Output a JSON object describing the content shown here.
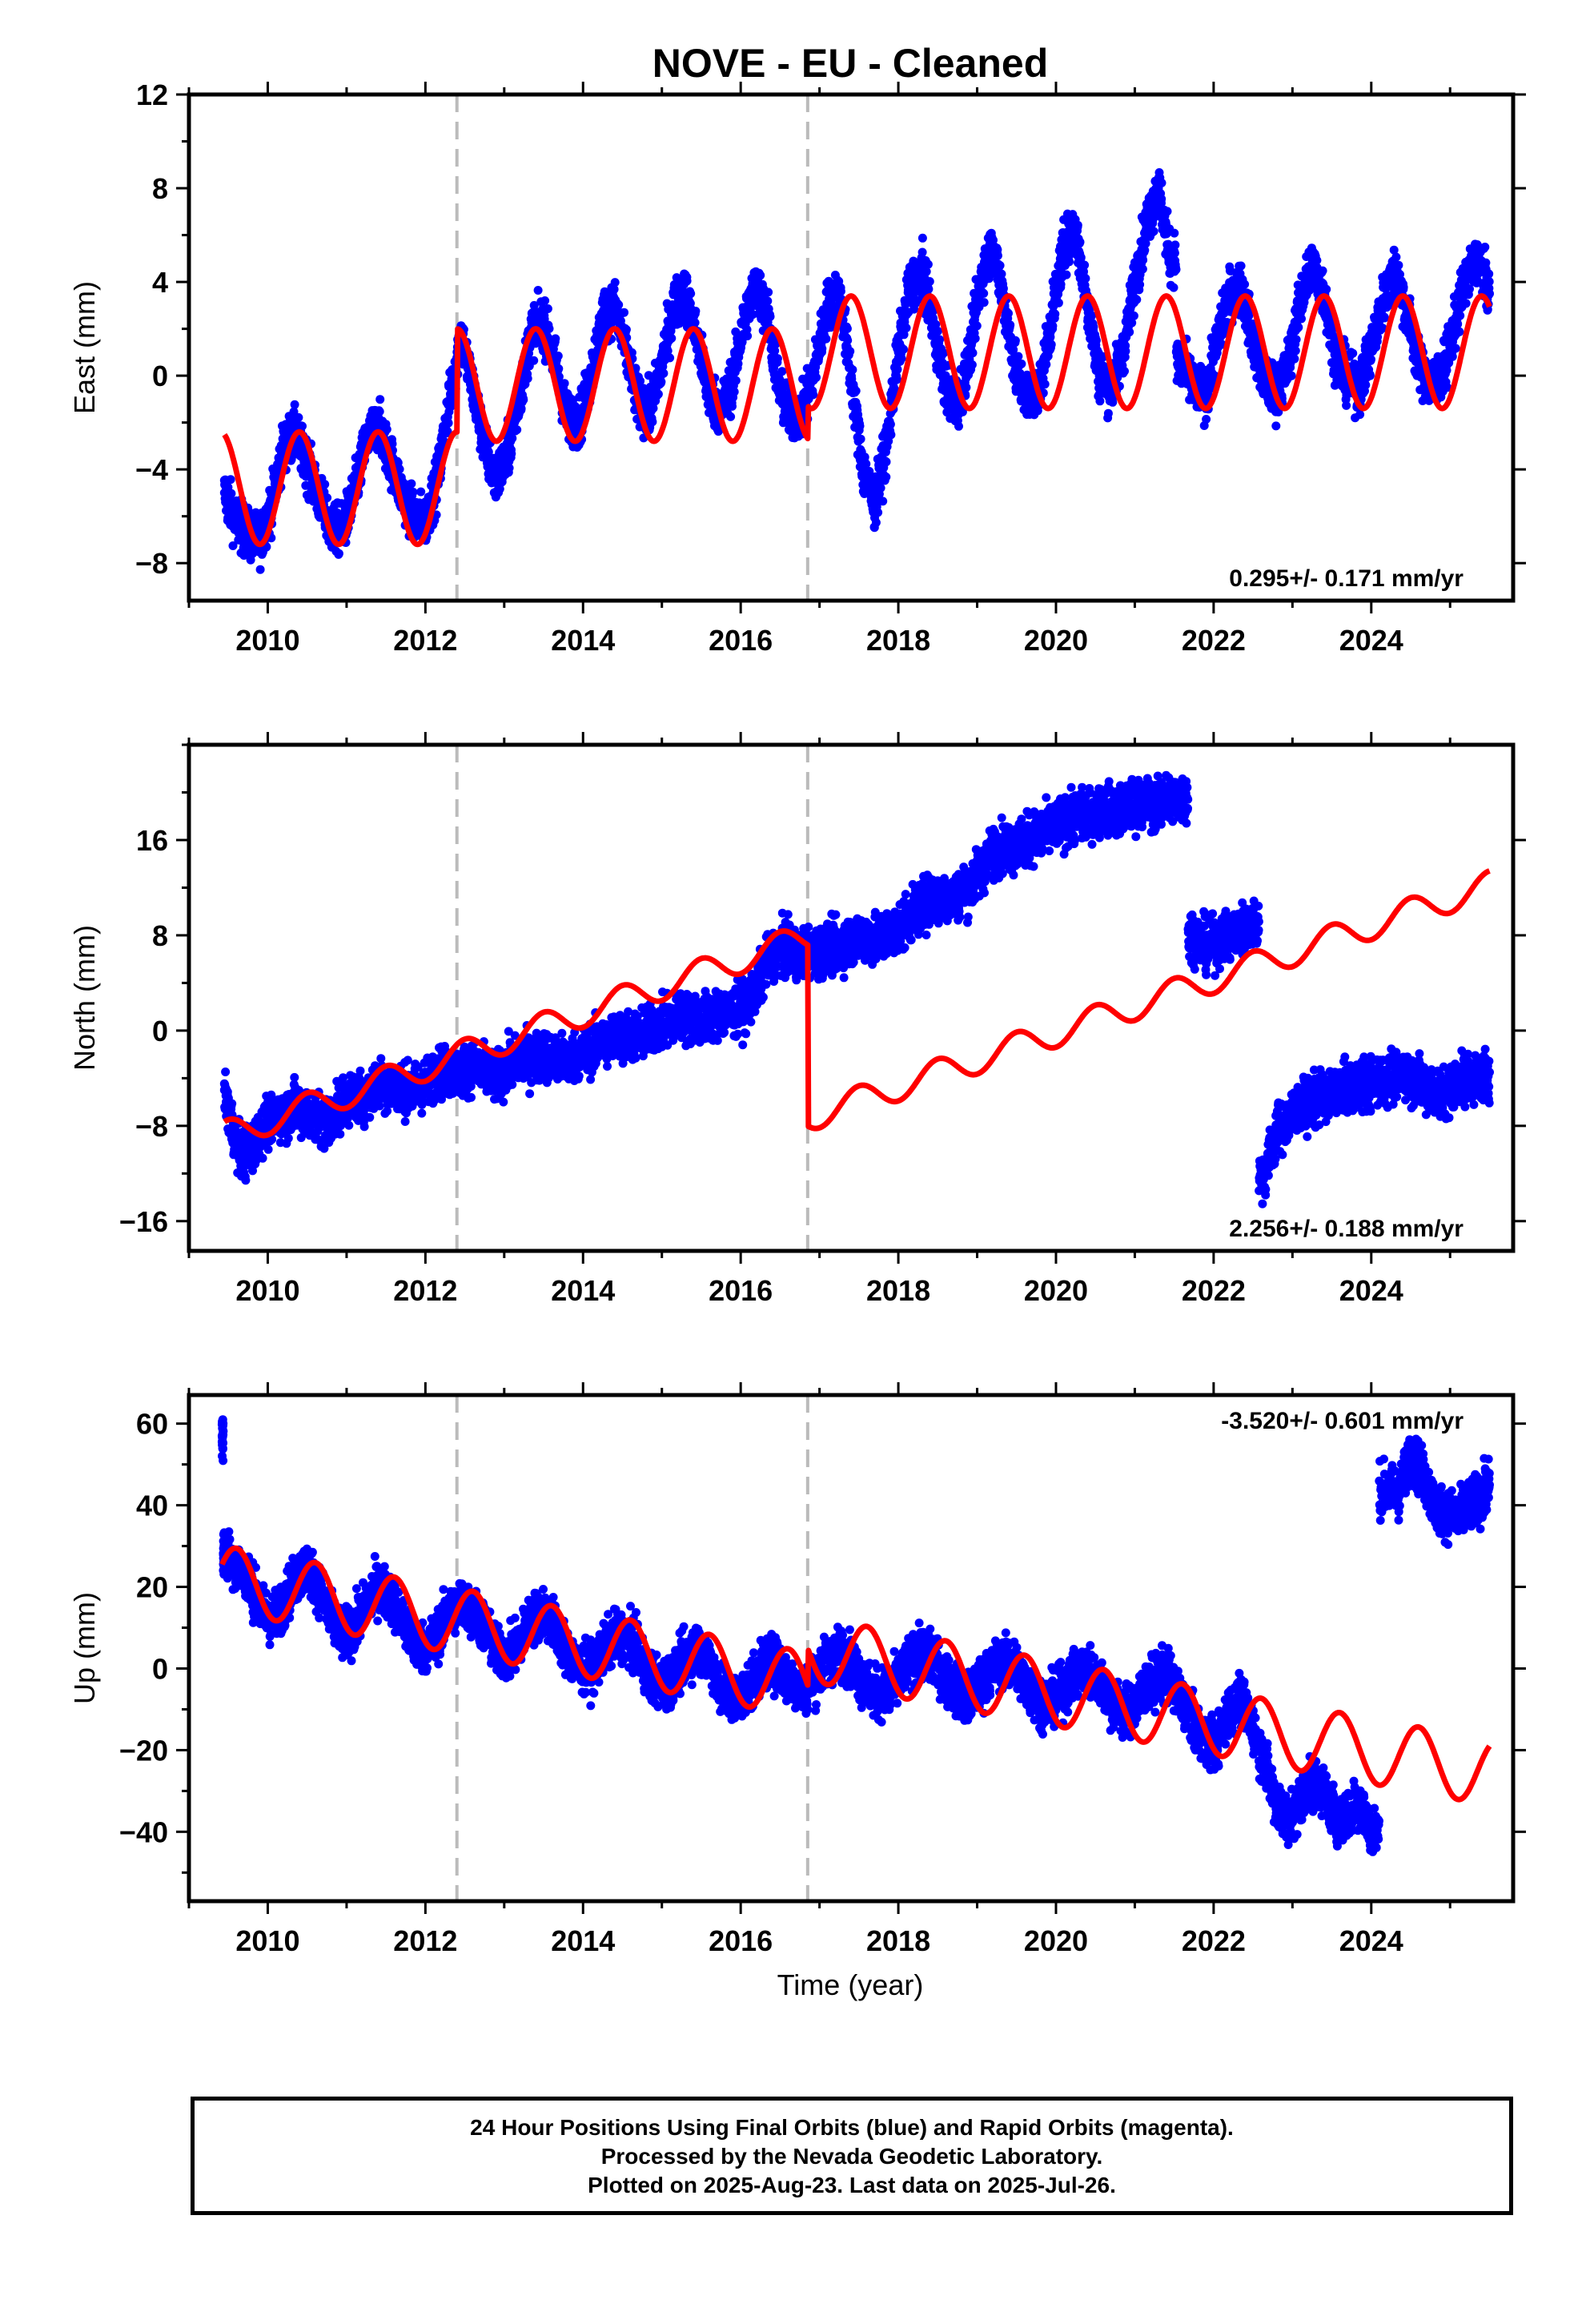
{
  "chart_data": [
    {
      "type": "scatter",
      "panel": "east",
      "title": "NOVE  - EU - Cleaned",
      "ylabel": "East (mm)",
      "xlabel": "",
      "xlim": [
        2009.0,
        2025.8
      ],
      "ylim": [
        -9.6,
        12.0
      ],
      "xticks": [
        2010,
        2012,
        2014,
        2016,
        2018,
        2020,
        2022,
        2024
      ],
      "yticks": [
        -8,
        -4,
        0,
        4,
        8,
        12
      ],
      "ytick_labels": [
        "−8",
        "−4",
        "0",
        "4",
        "8",
        "12"
      ],
      "rate_label": "0.295+/- 0.171 mm/yr",
      "rate_label_corner": "bottom-right",
      "steps": [
        2012.4,
        2016.85
      ],
      "grid": false,
      "series": [
        {
          "role": "observations",
          "color": "#0000ff",
          "x": [
            2009.45,
            2009.6,
            2009.75,
            2009.9,
            2010.05,
            2010.2,
            2010.35,
            2010.5,
            2010.65,
            2010.8,
            2010.95,
            2011.1,
            2011.25,
            2011.4,
            2011.55,
            2011.7,
            2011.85,
            2012.0,
            2012.15,
            2012.3,
            2012.45,
            2012.6,
            2012.75,
            2012.9,
            2013.05,
            2013.2,
            2013.35,
            2013.5,
            2013.65,
            2013.8,
            2013.95,
            2014.1,
            2014.25,
            2014.4,
            2014.55,
            2014.7,
            2014.85,
            2015.0,
            2015.15,
            2015.3,
            2015.45,
            2015.6,
            2015.75,
            2015.9,
            2016.05,
            2016.2,
            2016.35,
            2016.5,
            2016.65,
            2016.8,
            2016.95,
            2017.1,
            2017.25,
            2017.4,
            2017.55,
            2017.7,
            2017.85,
            2018.0,
            2018.15,
            2018.3,
            2018.45,
            2018.6,
            2018.75,
            2018.9,
            2019.05,
            2019.2,
            2019.35,
            2019.5,
            2019.65,
            2019.8,
            2019.95,
            2020.1,
            2020.25,
            2020.4,
            2020.55,
            2020.7,
            2020.85,
            2021.0,
            2021.15,
            2021.3,
            2021.45,
            2021.6,
            2021.75,
            2021.9,
            2022.05,
            2022.2,
            2022.35,
            2022.5,
            2022.65,
            2022.8,
            2022.95,
            2023.1,
            2023.25,
            2023.4,
            2023.55,
            2023.7,
            2023.85,
            2024.0,
            2024.15,
            2024.3,
            2024.45,
            2024.6,
            2024.75,
            2024.9,
            2025.05,
            2025.2,
            2025.35,
            2025.5
          ],
          "y": [
            -5.0,
            -6.2,
            -6.8,
            -7.0,
            -5.5,
            -3.0,
            -2.5,
            -3.8,
            -5.2,
            -6.5,
            -6.6,
            -5.0,
            -2.8,
            -2.1,
            -3.5,
            -5.0,
            -6.0,
            -6.2,
            -4.5,
            -1.2,
            1.8,
            -0.5,
            -3.0,
            -4.5,
            -3.2,
            -0.8,
            2.0,
            2.2,
            0.5,
            -1.8,
            -2.0,
            0.0,
            2.5,
            3.0,
            1.0,
            -1.2,
            -1.5,
            0.5,
            3.0,
            3.5,
            1.5,
            -0.8,
            -1.5,
            -0.2,
            2.5,
            3.8,
            2.5,
            -0.8,
            -1.8,
            -1.5,
            0.5,
            3.0,
            3.5,
            0.0,
            -4.0,
            -5.5,
            -3.0,
            1.0,
            3.8,
            4.5,
            2.0,
            -0.5,
            -1.2,
            0.8,
            4.2,
            5.5,
            3.0,
            0.0,
            -1.0,
            -0.5,
            2.5,
            5.5,
            6.2,
            3.0,
            0.0,
            -0.5,
            1.0,
            4.0,
            6.5,
            8.0,
            5.0,
            0.5,
            -0.5,
            -0.8,
            1.5,
            3.5,
            3.8,
            1.5,
            -0.2,
            -0.8,
            0.5,
            3.2,
            4.8,
            3.5,
            0.8,
            -0.2,
            -0.5,
            1.2,
            3.2,
            4.5,
            2.8,
            0.5,
            -0.5,
            0.0,
            2.0,
            4.2,
            5.0,
            3.5
          ]
        },
        {
          "role": "model",
          "color": "#ff0000",
          "annual_amplitude": 2.4,
          "phase_year": 2012.4,
          "offsets": [
            [
              2009.45,
              -4.8
            ],
            [
              2012.4,
              -0.4
            ],
            [
              2016.85,
              1.0
            ]
          ]
        }
      ]
    },
    {
      "type": "scatter",
      "panel": "north",
      "ylabel": "North (mm)",
      "xlabel": "",
      "xlim": [
        2009.0,
        2025.8
      ],
      "ylim": [
        -18.5,
        24.0
      ],
      "xticks": [
        2010,
        2012,
        2014,
        2016,
        2018,
        2020,
        2022,
        2024
      ],
      "yticks": [
        -16,
        -8,
        0,
        8,
        16
      ],
      "ytick_labels": [
        "−16",
        "−8",
        "0",
        "8",
        "16"
      ],
      "rate_label": "2.256+/- 0.188 mm/yr",
      "rate_label_corner": "bottom-right",
      "steps": [
        2012.4,
        2016.85
      ],
      "grid": false,
      "series": [
        {
          "role": "observations",
          "color": "#0000ff",
          "x": [
            2009.45,
            2009.6,
            2009.75,
            2009.9,
            2010.05,
            2010.2,
            2010.35,
            2010.5,
            2010.65,
            2010.8,
            2010.95,
            2011.1,
            2011.25,
            2011.4,
            2011.55,
            2011.7,
            2011.85,
            2012.0,
            2012.15,
            2012.3,
            2012.45,
            2012.6,
            2012.75,
            2012.9,
            2013.05,
            2013.2,
            2013.35,
            2013.5,
            2013.65,
            2013.8,
            2013.95,
            2014.1,
            2014.25,
            2014.4,
            2014.55,
            2014.7,
            2014.85,
            2015.0,
            2015.15,
            2015.3,
            2015.45,
            2015.6,
            2015.75,
            2015.9,
            2016.05,
            2016.2,
            2016.35,
            2016.5,
            2016.65,
            2016.8,
            2016.95,
            2017.1,
            2017.25,
            2017.4,
            2017.55,
            2017.7,
            2017.85,
            2018.0,
            2018.15,
            2018.3,
            2018.45,
            2018.6,
            2018.75,
            2018.9,
            2019.05,
            2019.2,
            2019.35,
            2019.5,
            2019.65,
            2019.8,
            2019.95,
            2020.1,
            2020.25,
            2020.4,
            2020.55,
            2020.7,
            2020.85,
            2021.0,
            2021.15,
            2021.3,
            2021.45,
            2021.6,
            2021.75,
            2021.9,
            2022.05,
            2022.2,
            2022.35,
            2022.5,
            2022.65,
            2022.8,
            2022.95,
            2023.1,
            2023.25,
            2023.4,
            2023.55,
            2023.7,
            2023.85,
            2024.0,
            2024.15,
            2024.3,
            2024.45,
            2024.6,
            2024.75,
            2024.9,
            2025.05,
            2025.2,
            2025.35,
            2025.5
          ],
          "y": [
            -5.0,
            -9.5,
            -10.5,
            -8.5,
            -7.5,
            -7.0,
            -6.5,
            -7.0,
            -7.5,
            -7.5,
            -6.0,
            -5.5,
            -5.5,
            -4.5,
            -4.5,
            -5.0,
            -5.0,
            -4.5,
            -3.5,
            -3.5,
            -3.5,
            -3.0,
            -3.5,
            -4.0,
            -3.0,
            -2.5,
            -2.5,
            -2.0,
            -2.5,
            -2.5,
            -2.0,
            -1.5,
            -1.0,
            -0.5,
            -0.5,
            -0.5,
            0.0,
            0.5,
            1.0,
            1.0,
            1.0,
            1.0,
            1.5,
            1.5,
            2.0,
            3.5,
            6.0,
            7.0,
            6.5,
            6.5,
            6.5,
            7.0,
            7.0,
            7.5,
            8.0,
            7.5,
            8.0,
            8.5,
            9.5,
            10.5,
            11.0,
            11.0,
            11.5,
            12.0,
            13.5,
            15.0,
            15.5,
            15.5,
            16.0,
            16.5,
            17.0,
            17.5,
            18.0,
            18.0,
            18.5,
            18.5,
            18.5,
            19.0,
            19.0,
            19.0,
            19.5,
            19.5,
            8.0,
            7.0,
            7.5,
            8.0,
            8.5,
            9.0,
            -12.0,
            -8.5,
            -7.5,
            -6.5,
            -6.0,
            -5.5,
            -5.0,
            -5.0,
            -4.5,
            -4.5,
            -4.0,
            -4.0,
            -3.5,
            -4.5,
            -5.0,
            -5.5,
            -4.5,
            -4.0,
            -4.0,
            -3.5
          ]
        },
        {
          "role": "model",
          "color": "#ff0000",
          "annual_amplitude": 1.2,
          "phase_year": 2016.5,
          "rate": 2.256,
          "ref_year": 2009.45,
          "ref_value": -8.8,
          "offsets": [
            [
              2009.45,
              0.0
            ],
            [
              2012.4,
              0.0
            ],
            [
              2016.85,
              -15.2
            ]
          ]
        }
      ]
    },
    {
      "type": "scatter",
      "panel": "up",
      "ylabel": "Up (mm)",
      "xlabel": "Time (year)",
      "xlim": [
        2009.0,
        2025.8
      ],
      "ylim": [
        -57,
        67
      ],
      "xticks": [
        2010,
        2012,
        2014,
        2016,
        2018,
        2020,
        2022,
        2024
      ],
      "yticks": [
        -40,
        -20,
        0,
        20,
        40,
        60
      ],
      "ytick_labels": [
        "−40",
        "−20",
        "0",
        "20",
        "40",
        "60"
      ],
      "rate_label": "-3.520+/- 0.601 mm/yr",
      "rate_label_corner": "top-right",
      "steps": [
        2012.4,
        2016.85
      ],
      "grid": false,
      "series": [
        {
          "role": "observations",
          "color": "#0000ff",
          "x": [
            2009.42,
            2009.45,
            2009.6,
            2009.75,
            2009.9,
            2010.05,
            2010.2,
            2010.35,
            2010.5,
            2010.65,
            2010.8,
            2010.95,
            2011.1,
            2011.25,
            2011.4,
            2011.55,
            2011.7,
            2011.85,
            2012.0,
            2012.15,
            2012.3,
            2012.45,
            2012.6,
            2012.75,
            2012.9,
            2013.05,
            2013.2,
            2013.35,
            2013.5,
            2013.65,
            2013.8,
            2013.95,
            2014.1,
            2014.25,
            2014.4,
            2014.55,
            2014.7,
            2014.85,
            2015.0,
            2015.15,
            2015.3,
            2015.45,
            2015.6,
            2015.75,
            2015.9,
            2016.05,
            2016.2,
            2016.35,
            2016.5,
            2016.65,
            2016.8,
            2016.95,
            2017.1,
            2017.25,
            2017.4,
            2017.55,
            2017.7,
            2017.85,
            2018.0,
            2018.15,
            2018.3,
            2018.45,
            2018.6,
            2018.75,
            2018.9,
            2019.05,
            2019.2,
            2019.35,
            2019.5,
            2019.65,
            2019.8,
            2019.95,
            2020.1,
            2020.25,
            2020.4,
            2020.55,
            2020.7,
            2020.85,
            2021.0,
            2021.15,
            2021.3,
            2021.45,
            2021.6,
            2021.75,
            2021.9,
            2022.05,
            2022.2,
            2022.35,
            2022.5,
            2022.65,
            2022.8,
            2022.95,
            2023.1,
            2023.25,
            2023.4,
            2023.55,
            2023.7,
            2023.85,
            2024.0,
            2024.2,
            2024.35,
            2024.5,
            2024.65,
            2024.8,
            2024.95,
            2025.1,
            2025.25,
            2025.4,
            2025.5
          ],
          "y": [
            57,
            28,
            26,
            22,
            15,
            12,
            16,
            22,
            25,
            20,
            12,
            8,
            10,
            16,
            20,
            18,
            12,
            6,
            5,
            8,
            14,
            16,
            14,
            10,
            4,
            3,
            7,
            12,
            14,
            10,
            4,
            0,
            0,
            4,
            8,
            8,
            4,
            -2,
            -4,
            -2,
            3,
            5,
            2,
            -5,
            -8,
            -6,
            -2,
            2,
            0,
            -4,
            -5,
            -2,
            2,
            4,
            2,
            -3,
            -6,
            -6,
            -3,
            2,
            4,
            2,
            -2,
            -6,
            -7,
            -4,
            0,
            2,
            0,
            -5,
            -8,
            -8,
            -5,
            -1,
            0,
            -3,
            -8,
            -11,
            -9,
            -5,
            -2,
            -2,
            -8,
            -14,
            -18,
            -18,
            -10,
            -8,
            -14,
            -24,
            -33,
            -38,
            -32,
            -28,
            -30,
            -36,
            -36,
            -32,
            -40,
            44,
            43,
            52,
            48,
            40,
            38,
            37,
            40,
            42,
            45
          ]
        },
        {
          "role": "model",
          "color": "#ff0000",
          "annual_amplitude": 8.0,
          "phase_year": 2009.6,
          "rate": -3.52,
          "ref_year": 2009.45,
          "ref_value": 22.0,
          "offsets": [
            [
              2009.45,
              0.0
            ],
            [
              2012.4,
              0.0
            ],
            [
              2016.85,
              9.0
            ]
          ]
        }
      ]
    }
  ],
  "caption": {
    "line1": "24 Hour Positions Using Final Orbits (blue) and Rapid Orbits (magenta).",
    "line2": "Processed by the Nevada Geodetic Laboratory.",
    "line3": "Plotted on 2025-Aug-23. Last data on 2025-Jul-26."
  },
  "colors": {
    "observations": "#0000ff",
    "model": "#ff0000",
    "steps": "#bbbbbb",
    "frame": "#000000"
  }
}
